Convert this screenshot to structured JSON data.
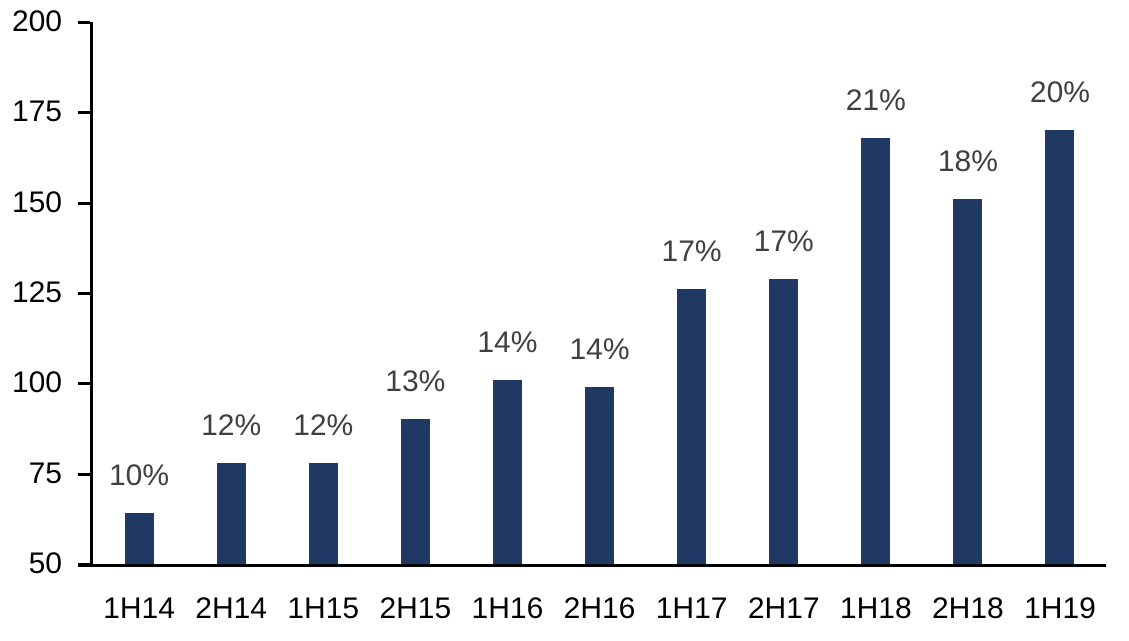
{
  "chart_data": {
    "type": "bar",
    "title": "",
    "xlabel": "",
    "ylabel": "",
    "categories": [
      "1H14",
      "2H14",
      "1H15",
      "2H15",
      "1H16",
      "2H16",
      "1H17",
      "2H17",
      "1H18",
      "2H18",
      "1H19"
    ],
    "values": [
      64,
      78,
      78,
      90,
      101,
      99,
      126,
      129,
      168,
      151,
      170
    ],
    "data_labels": [
      "10%",
      "12%",
      "12%",
      "13%",
      "14%",
      "14%",
      "17%",
      "17%",
      "21%",
      "18%",
      "20%"
    ],
    "y_ticks": [
      50,
      75,
      100,
      125,
      150,
      175,
      200
    ],
    "ylim": [
      50,
      200
    ],
    "grid": false,
    "legend": "none",
    "colors": {
      "bar": "#1f3864",
      "data_label": "#404040",
      "axis": "#000000",
      "background": "#ffffff"
    }
  }
}
